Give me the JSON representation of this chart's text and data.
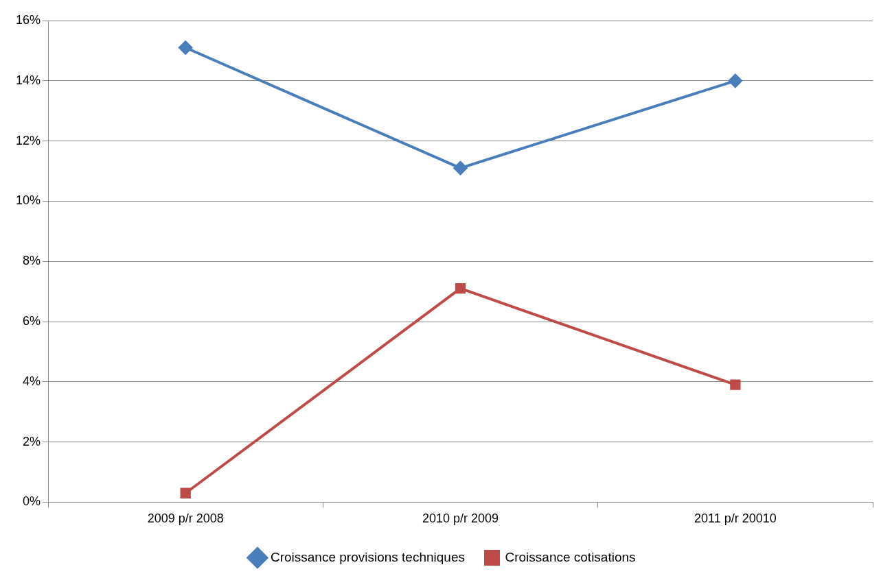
{
  "chart_data": {
    "type": "line",
    "categories": [
      "2009 p/r 2008",
      "2010 p/r 2009",
      "2011 p/r 20010"
    ],
    "series": [
      {
        "name": "Croissance provisions techniques",
        "color": "#4a7ebb",
        "values": [
          15.1,
          11.1,
          14.0
        ],
        "marker": "diamond"
      },
      {
        "name": "Croissance cotisations",
        "color": "#be4b48",
        "values": [
          0.3,
          7.1,
          3.9
        ],
        "marker": "square"
      }
    ],
    "ylim": [
      0,
      16
    ],
    "yticks": [
      {
        "value": 0,
        "label": "0%"
      },
      {
        "value": 2,
        "label": "2%"
      },
      {
        "value": 4,
        "label": "4%"
      },
      {
        "value": 6,
        "label": "6%"
      },
      {
        "value": 8,
        "label": "8%"
      },
      {
        "value": 10,
        "label": "10%"
      },
      {
        "value": 12,
        "label": "12%"
      },
      {
        "value": 14,
        "label": "14%"
      },
      {
        "value": 16,
        "label": "16%"
      }
    ],
    "grid": "y",
    "legend": "bottom",
    "line_style": "solid"
  }
}
